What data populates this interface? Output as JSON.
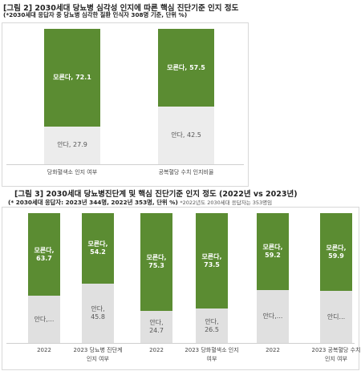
{
  "chart_data": [
    {
      "type": "bar",
      "stacked": true,
      "normalized_percent": true,
      "title": "[그림 2] 2030세대 당뇨병 심각성 인지에 따른 핵심 진단기준 인지 정도",
      "subtitle": "(*2030세대 응답자 중 당뇨병 심각한 질환 인식자 308명 기준, 단위 %)",
      "categories": [
        "당화혈색소 인지 여부",
        "공복혈당 수치 인지비율"
      ],
      "series": [
        {
          "name": "모른다",
          "values": [
            72.1,
            57.5
          ],
          "color": "#5b8c32",
          "labels": [
            "모른다, 72.1",
            "모른다, 57.5"
          ]
        },
        {
          "name": "안다",
          "values": [
            27.9,
            42.5
          ],
          "color": "#ececec",
          "labels": [
            "안다, 27.9",
            "안다, 42.5"
          ]
        }
      ]
    },
    {
      "type": "bar",
      "stacked": true,
      "normalized_percent": true,
      "title": "[그림 3] 2030세대 당뇨병진단계 및 핵심 진단기준 인지 정도 (2022년 vs 2023년)",
      "subtitle": "(* 2030세대 응답자: 2023년 344명, 2022년 353명, 단위 %)",
      "note": "*2022년도 2030세대 응답자는 353명임",
      "categories": [
        "2022",
        "2023 당뇨병 진단계 인지 여부",
        "2022",
        "2023 당화혈색소 인지 여부",
        "2022",
        "2023 공복혈당 수치 인지 여부"
      ],
      "series": [
        {
          "name": "모른다",
          "values": [
            63.7,
            54.2,
            75.3,
            73.5,
            59.2,
            59.9
          ],
          "color": "#5b8c32",
          "labels": [
            "모른다, 63.7",
            "모른다, 54.2",
            "모른다, 75.3",
            "모른다, 73.5",
            "모른다, 59.2",
            "모른다, 59.9"
          ]
        },
        {
          "name": "안다",
          "values": [
            36.3,
            45.8,
            24.7,
            26.5,
            40.8,
            40.1
          ],
          "color": "#e0e0e0",
          "labels": [
            "안다,...",
            "안다, 45.8",
            "안다, 24.7",
            "안다, 26.5",
            "안다,...",
            "안디..."
          ]
        }
      ]
    }
  ]
}
